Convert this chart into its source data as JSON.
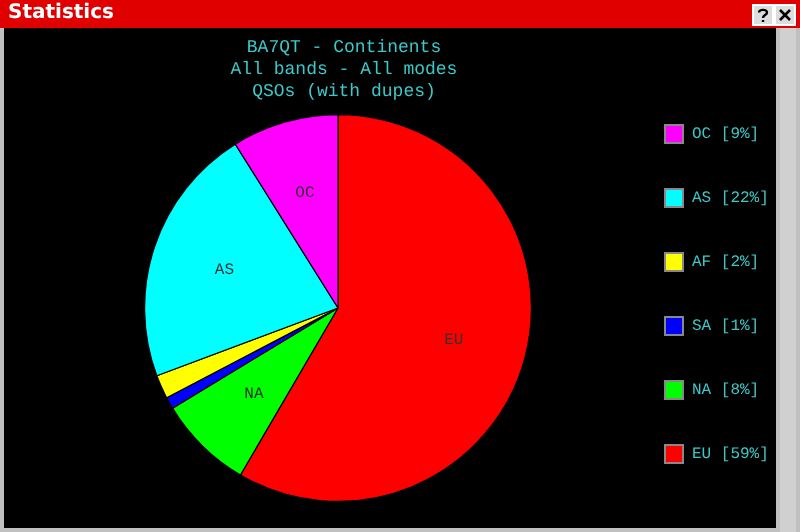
{
  "chart_data": {
    "type": "pie",
    "title": "BA7QT - Continents",
    "subtitle": "All bands - All modes",
    "annotations": [
      "QSOs (with dupes)",
      "Statistics"
    ],
    "categories": [
      "EU",
      "NA",
      "SA",
      "AF",
      "AS",
      "OC"
    ],
    "values": [
      59,
      8,
      1,
      2,
      22,
      9
    ],
    "value_labels": [
      "[59%]",
      "[8%]",
      "[1%]",
      "[2%]",
      "[22%]",
      "[9%]"
    ],
    "colors": [
      "#ff0000",
      "#00ff00",
      "#0000ff",
      "#ffff00",
      "#00ffff",
      "#ff00ff"
    ],
    "legend": "right"
  }
}
